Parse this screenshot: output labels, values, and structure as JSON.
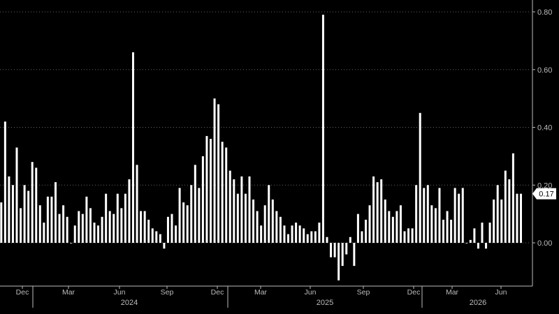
{
  "chart_data": {
    "type": "bar",
    "title": "",
    "xlabel": "",
    "ylabel": "",
    "ylim": [
      -0.15,
      0.82
    ],
    "yticks": [
      0.0,
      0.2,
      0.4,
      0.6,
      0.8
    ],
    "ytick_labels": [
      "0.00",
      "0.20",
      "0.40",
      "0.60",
      "0.80"
    ],
    "grid": true,
    "colors": {
      "background": "#000000",
      "bar": "#ffffff",
      "grid": "#666666",
      "text": "#bbbbbb",
      "last_value_bg": "#ffffff",
      "last_value_text": "#000000"
    },
    "last_value_label": "0.17",
    "month_ticks": [
      "Dec",
      "Mar",
      "Jun",
      "Sep",
      "Dec",
      "Mar",
      "Jun",
      "Sep",
      "Dec",
      "Mar",
      "Jun"
    ],
    "years": [
      "2024",
      "2025",
      "2026"
    ],
    "series": [
      {
        "values": [
          0.14,
          0.42,
          0.23,
          0.2,
          0.33,
          0.12,
          0.2,
          0.18,
          0.28,
          0.26,
          0.13,
          0.07,
          0.16,
          0.16,
          0.21,
          0.1,
          0.13,
          0.09,
          0.0,
          0.06,
          0.11,
          0.1,
          0.16,
          0.12,
          0.07,
          0.06,
          0.09,
          0.17,
          0.11,
          0.1,
          0.17,
          0.12,
          0.17,
          0.22,
          0.66,
          0.27,
          0.11,
          0.11,
          0.08,
          0.05,
          0.04,
          0.03,
          -0.02,
          0.09,
          0.1,
          0.06,
          0.19,
          0.14,
          0.13,
          0.2,
          0.27,
          0.19,
          0.3,
          0.37,
          0.36,
          0.5,
          0.48,
          0.35,
          0.33,
          0.25,
          0.22,
          0.17,
          0.23,
          0.17,
          0.23,
          0.15,
          0.11,
          0.06,
          0.13,
          0.2,
          0.15,
          0.11,
          0.09,
          0.06,
          0.03,
          0.06,
          0.07,
          0.06,
          0.05,
          0.03,
          0.04,
          0.04,
          0.07,
          0.79,
          0.02,
          -0.05,
          -0.05,
          -0.13,
          -0.08,
          -0.04,
          0.02,
          -0.08,
          0.1,
          0.04,
          0.08,
          0.13,
          0.23,
          0.21,
          0.22,
          0.15,
          0.11,
          0.09,
          0.11,
          0.13,
          0.04,
          0.05,
          0.05,
          0.2,
          0.45,
          0.19,
          0.2,
          0.13,
          0.12,
          0.19,
          0.08,
          0.11,
          0.08,
          0.19,
          0.17,
          0.19,
          0.0,
          0.01,
          0.05,
          -0.02,
          0.07,
          -0.02,
          0.07,
          0.15,
          0.2,
          0.15,
          0.25,
          0.22,
          0.31,
          0.17,
          0.17
        ]
      }
    ]
  }
}
